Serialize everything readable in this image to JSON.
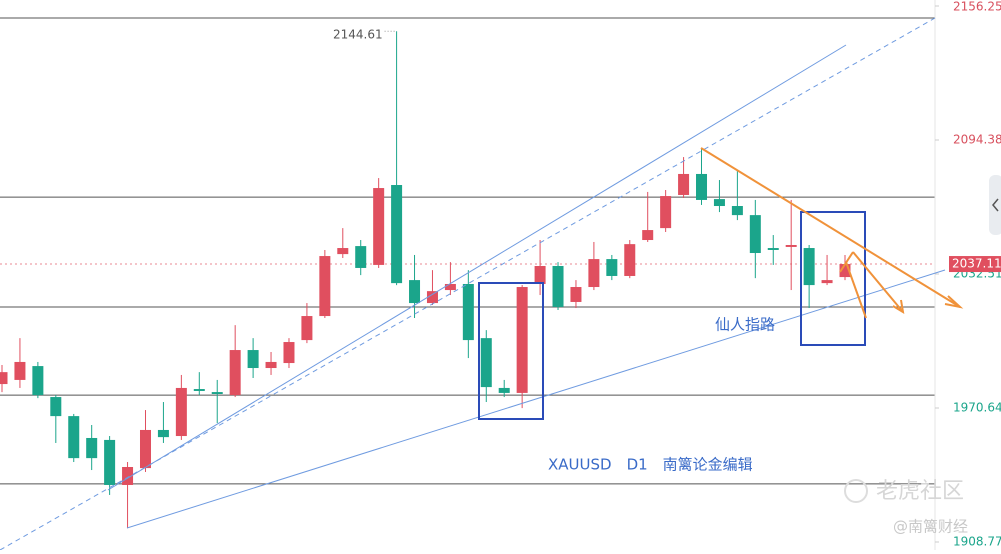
{
  "chart_data": {
    "type": "candlestick",
    "symbol_note": "XAUUSD　D1　南篱论金编辑",
    "pattern_label": "仙人指路",
    "watermark": "老虎社区",
    "source": "@南篱财经",
    "up_color": "#e04f5f",
    "down_color": "#1ba58b",
    "open": [
      1981.7,
      1983.6,
      1990.0,
      1975.7,
      1966.9,
      1956.8,
      1955.9,
      1935.1,
      1942.9,
      1960.5,
      1957.7,
      1979.4,
      1978.0,
      1976.6,
      1997.4,
      1989.1,
      1991.4,
      2002.0,
      2013.1,
      2041.7,
      2045.4,
      2036.7,
      2073.6,
      2029.7,
      2019.1,
      2025.1,
      2027.9,
      2002.9,
      1979.9,
      1977.6,
      2027.9,
      2036.2,
      2019.6,
      2026.5,
      2039.4,
      2031.6,
      2048.2,
      2053.7,
      2069.0,
      2078.7,
      2067.1,
      2063.9,
      2059.7,
      2044.5,
      2045.0,
      2044.5,
      2028.3,
      2031.1
    ],
    "high": [
      1990.5,
      2002.9,
      1991.9,
      1976.6,
      1967.9,
      1962.8,
      1957.7,
      1945.7,
      1969.7,
      1973.4,
      1985.9,
      1987.2,
      1983.6,
      2008.9,
      2002.9,
      1996.5,
      2002.9,
      2019.1,
      2043.6,
      2053.7,
      2048.2,
      2076.8,
      2144.61,
      2041.3,
      2034.3,
      2038.0,
      2034.3,
      2006.6,
      1983.6,
      2027.4,
      2048.2,
      2038.0,
      2029.7,
      2047.3,
      2041.3,
      2048.2,
      2070.4,
      2071.3,
      2086.5,
      2090.7,
      2075.9,
      2080.5,
      2066.7,
      2050.5,
      2066.7,
      2045.9,
      2041.3,
      2041.3
    ],
    "low": [
      1978.0,
      1979.9,
      1975.2,
      1954.5,
      1945.7,
      1942.0,
      1930.5,
      1915.2,
      1941.1,
      1954.5,
      1955.9,
      1976.6,
      1963.7,
      1975.7,
      1984.5,
      1985.9,
      1989.1,
      2000.6,
      2012.2,
      2039.9,
      2032.0,
      2035.3,
      2027.4,
      2012.2,
      2018.2,
      2022.8,
      1993.7,
      1973.4,
      1975.7,
      1970.6,
      2022.8,
      2015.9,
      2016.8,
      2025.1,
      2029.7,
      2030.6,
      2047.3,
      2051.9,
      2067.6,
      2064.4,
      2061.1,
      2057.4,
      2030.6,
      2036.7,
      2025.1,
      2016.8,
      2027.4,
      2029.7
    ],
    "close": [
      1987.2,
      1991.9,
      1976.6,
      1966.9,
      1947.5,
      1947.5,
      1935.1,
      1943.4,
      1960.5,
      1957.2,
      1979.9,
      1978.5,
      1977.1,
      1997.4,
      1989.1,
      1991.9,
      2001.1,
      2013.1,
      2040.8,
      2044.5,
      2035.3,
      2072.2,
      2028.3,
      2019.1,
      2024.6,
      2027.9,
      2002.0,
      1980.3,
      1977.6,
      2026.5,
      2036.2,
      2017.3,
      2026.5,
      2039.4,
      2031.6,
      2046.3,
      2052.8,
      2068.5,
      2078.7,
      2066.7,
      2063.9,
      2059.7,
      2042.2,
      2043.6,
      2045.9,
      2027.4,
      2029.7,
      2037.11
    ],
    "levels": [
      2150.7,
      2068.0,
      2017.3,
      1976.6,
      1935.6
    ],
    "ylim": [
      1905.08,
      2159.02
    ],
    "yticks": [
      2156.25,
      2094.38,
      2032.51,
      1970.64,
      1908.77
    ],
    "grid": false
  }
}
